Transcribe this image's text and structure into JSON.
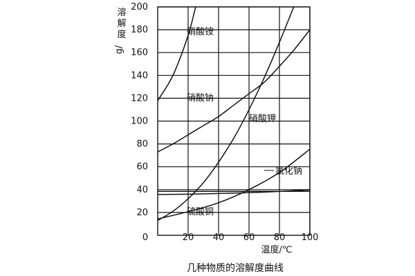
{
  "chart_data": {
    "type": "line",
    "title": "几种物质的溶解度曲线",
    "ylabel": "溶解度",
    "ylabel_unit": "g/",
    "xlabel": "温度/℃",
    "origin_label": "0",
    "xlim": [
      0,
      100
    ],
    "ylim": [
      0,
      200
    ],
    "x_ticks": [
      20,
      40,
      60,
      80,
      100
    ],
    "y_ticks": [
      20,
      40,
      60,
      80,
      100,
      120,
      140,
      160,
      180,
      200
    ],
    "grid": true,
    "series": [
      {
        "name": "硝酸铵",
        "x": [
          0,
          10,
          20,
          25,
          30
        ],
        "y": [
          118,
          140,
          175,
          200,
          220
        ]
      },
      {
        "name": "硝酸钠",
        "x": [
          0,
          10,
          20,
          30,
          40,
          50,
          60,
          70,
          80,
          90,
          100
        ],
        "y": [
          73,
          80,
          88,
          96,
          104,
          114,
          124,
          134,
          148,
          163,
          180
        ]
      },
      {
        "name": "硝酸钾",
        "x": [
          0,
          10,
          20,
          30,
          40,
          50,
          60,
          70,
          80,
          90
        ],
        "y": [
          13,
          21,
          32,
          46,
          64,
          85,
          110,
          138,
          169,
          202
        ]
      },
      {
        "name": "氯化钠",
        "x": [
          0,
          20,
          40,
          60,
          80,
          100
        ],
        "y": [
          35.7,
          36,
          36.6,
          37.3,
          38.4,
          39.8
        ]
      },
      {
        "name": "",
        "x": [
          0,
          20,
          40,
          60,
          80,
          100
        ],
        "y": [
          38.5,
          38.5,
          38.5,
          38.5,
          38.5,
          38.5
        ]
      },
      {
        "name": "硫酸铜",
        "x": [
          0,
          20,
          40,
          60,
          80,
          100
        ],
        "y": [
          14.3,
          20.7,
          28.5,
          40,
          55,
          75.4
        ]
      }
    ],
    "annotations": [
      {
        "text": "硝酸铵",
        "series": "硝酸铵"
      },
      {
        "text": "硝酸钠",
        "series": "硝酸钠"
      },
      {
        "text": "硝酸钾",
        "series": "硝酸钾"
      },
      {
        "text": "氯化钠",
        "series": "氯化钠"
      },
      {
        "text": "硫酸铜",
        "series": "硫酸铜"
      }
    ]
  }
}
